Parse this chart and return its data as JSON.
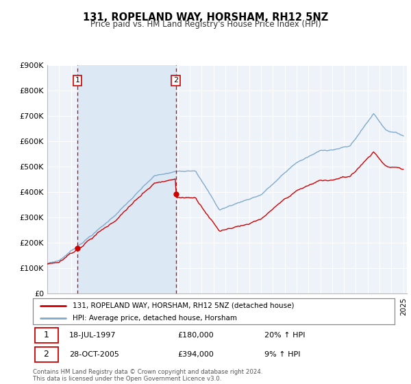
{
  "title": "131, ROPELAND WAY, HORSHAM, RH12 5NZ",
  "subtitle": "Price paid vs. HM Land Registry's House Price Index (HPI)",
  "legend_line1": "131, ROPELAND WAY, HORSHAM, RH12 5NZ (detached house)",
  "legend_line2": "HPI: Average price, detached house, Horsham",
  "sale1_date": "18-JUL-1997",
  "sale1_price": "£180,000",
  "sale1_hpi": "20% ↑ HPI",
  "sale1_year": 1997.54,
  "sale1_value": 180000,
  "sale2_date": "28-OCT-2005",
  "sale2_price": "£394,000",
  "sale2_hpi": "9% ↑ HPI",
  "sale2_year": 2005.83,
  "sale2_value": 394000,
  "footer": "Contains HM Land Registry data © Crown copyright and database right 2024.\nThis data is licensed under the Open Government Licence v3.0.",
  "red_color": "#cc0000",
  "blue_color": "#7faacc",
  "shade_color": "#dde8f5",
  "dashed_color": "#cc0000",
  "plot_bg_color": "#eef3fa",
  "grid_color": "#ffffff",
  "ylim_max": 900000,
  "xlim_start": 1995.0,
  "xlim_end": 2025.3,
  "n_points": 360
}
